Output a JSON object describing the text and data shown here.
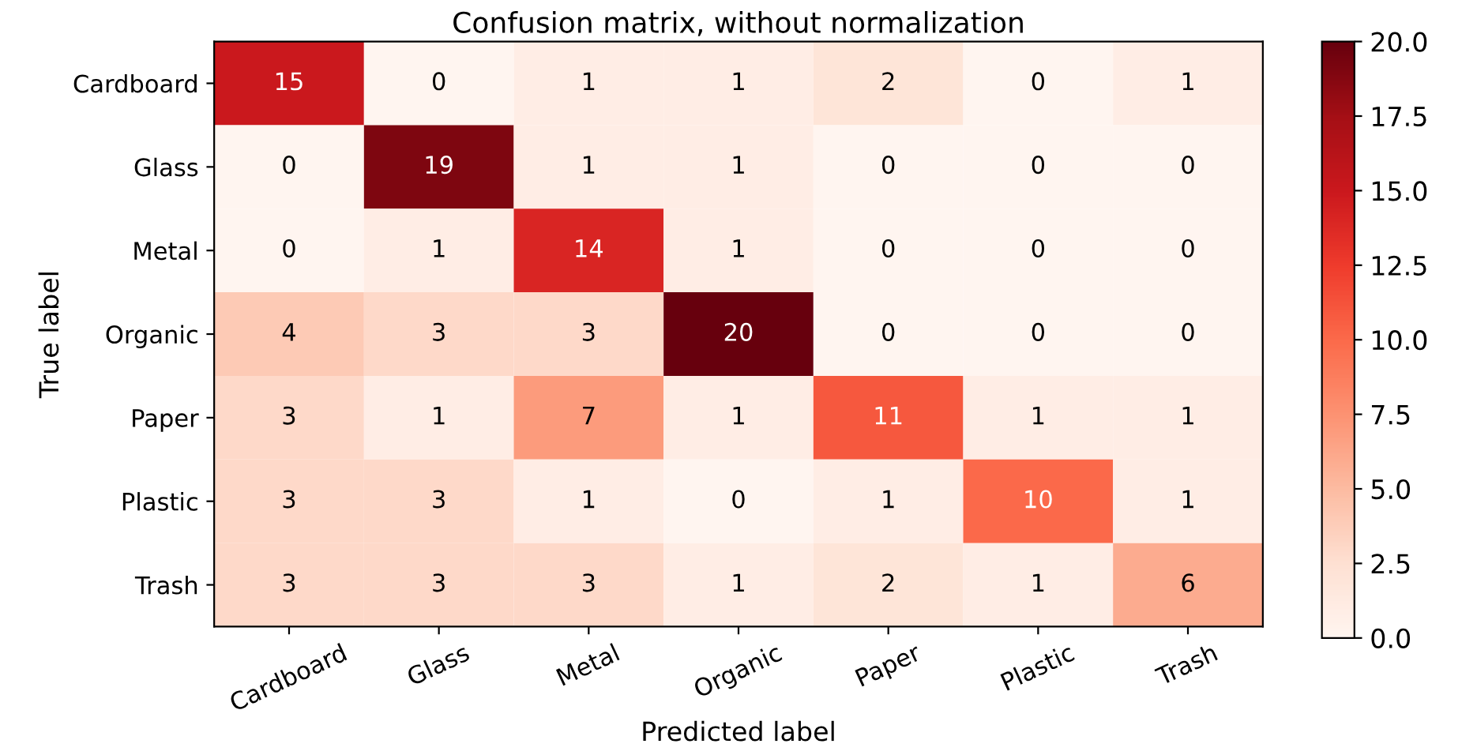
{
  "chart_data": {
    "type": "heatmap",
    "title": "Confusion matrix, without normalization",
    "xlabel": "Predicted label",
    "ylabel": "True label",
    "categories": [
      "Cardboard",
      "Glass",
      "Metal",
      "Organic",
      "Paper",
      "Plastic",
      "Trash"
    ],
    "y_categories": [
      "Cardboard",
      "Glass",
      "Metal",
      "Organic",
      "Paper",
      "Plastic",
      "Trash"
    ],
    "cells": [
      [
        15,
        0,
        1,
        1,
        2,
        0,
        1
      ],
      [
        0,
        19,
        1,
        1,
        0,
        0,
        0
      ],
      [
        0,
        1,
        14,
        1,
        0,
        0,
        0
      ],
      [
        4,
        3,
        3,
        20,
        0,
        0,
        0
      ],
      [
        3,
        1,
        7,
        1,
        11,
        1,
        1
      ],
      [
        3,
        3,
        1,
        0,
        1,
        10,
        1
      ],
      [
        3,
        3,
        3,
        1,
        2,
        1,
        6
      ]
    ],
    "clim": [
      0,
      20
    ],
    "cticks": [
      {
        "value": 0,
        "label": "0.0"
      },
      {
        "value": 2.5,
        "label": "2.5"
      },
      {
        "value": 5,
        "label": "5.0"
      },
      {
        "value": 7.5,
        "label": "7.5"
      },
      {
        "value": 10,
        "label": "10.0"
      },
      {
        "value": 12.5,
        "label": "12.5"
      },
      {
        "value": 15,
        "label": "15.0"
      },
      {
        "value": 17.5,
        "label": "17.5"
      },
      {
        "value": 20,
        "label": "20.0"
      }
    ],
    "data_labels": true
  }
}
